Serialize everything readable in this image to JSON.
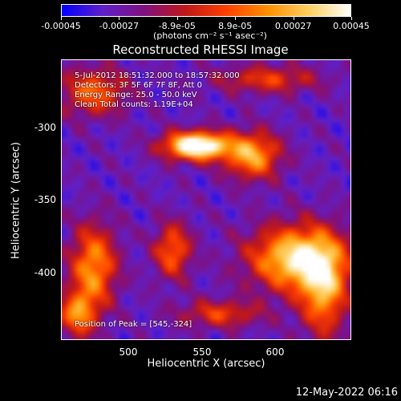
{
  "colorbar": {
    "labels": [
      "-0.00045",
      "-0.00027",
      "-8.9e-05",
      "8.9e-05",
      "0.00027",
      "0.00045"
    ],
    "units": "(photons cm⁻² s⁻¹ asec⁻²)",
    "colors": [
      "#0000ff",
      "#6020c8",
      "#801080",
      "#c01818",
      "#ff4000",
      "#ff9000",
      "#ffd060",
      "#ffffff"
    ]
  },
  "annotations": {
    "time_range": "5-Jul-2012 18:51:32.000 to 18:57:32.000",
    "detectors": "Detectors: 3F 5F 6F 7F 8F, Att 0",
    "energy_range": "Energy Range: 25.0 - 50.0 keV",
    "method": "Clean    Total counts: 1.19E+04",
    "peak": "Position of Peak = [545,-324]"
  },
  "footer": {
    "date": "12-May-2022 06:16"
  },
  "chart_data": {
    "type": "heatmap",
    "title": "Reconstructed RHESSI Image",
    "xlabel": "Heliocentric X (arcsec)",
    "ylabel": "Heliocentric Y (arcsec)",
    "xlim": [
      460,
      642
    ],
    "ylim": [
      -446,
      -270
    ],
    "x_ticks": [
      "500",
      "550",
      "600"
    ],
    "y_ticks": [
      "-300",
      "-350",
      "-400"
    ],
    "value_range": [
      -0.00045,
      0.00045
    ],
    "peak_position": [
      545,
      -324
    ],
    "sources": [
      {
        "x": 545,
        "y": -324,
        "sx": 14,
        "sy": 6,
        "amp": 1.0
      },
      {
        "x": 580,
        "y": -330,
        "sx": 12,
        "sy": 10,
        "amp": 0.6
      },
      {
        "x": 608,
        "y": -395,
        "sx": 20,
        "sy": 14,
        "amp": 0.75
      },
      {
        "x": 625,
        "y": -415,
        "sx": 10,
        "sy": 20,
        "amp": 0.55
      },
      {
        "x": 480,
        "y": -400,
        "sx": 10,
        "sy": 18,
        "amp": 0.55
      },
      {
        "x": 470,
        "y": -430,
        "sx": 8,
        "sy": 10,
        "amp": 0.5
      },
      {
        "x": 480,
        "y": -290,
        "sx": 14,
        "sy": 10,
        "amp": 0.45
      },
      {
        "x": 590,
        "y": -282,
        "sx": 22,
        "sy": 6,
        "amp": 0.35
      },
      {
        "x": 530,
        "y": -390,
        "sx": 8,
        "sy": 12,
        "amp": 0.45
      },
      {
        "x": 560,
        "y": -430,
        "sx": 18,
        "sy": 6,
        "amp": 0.35
      }
    ]
  }
}
